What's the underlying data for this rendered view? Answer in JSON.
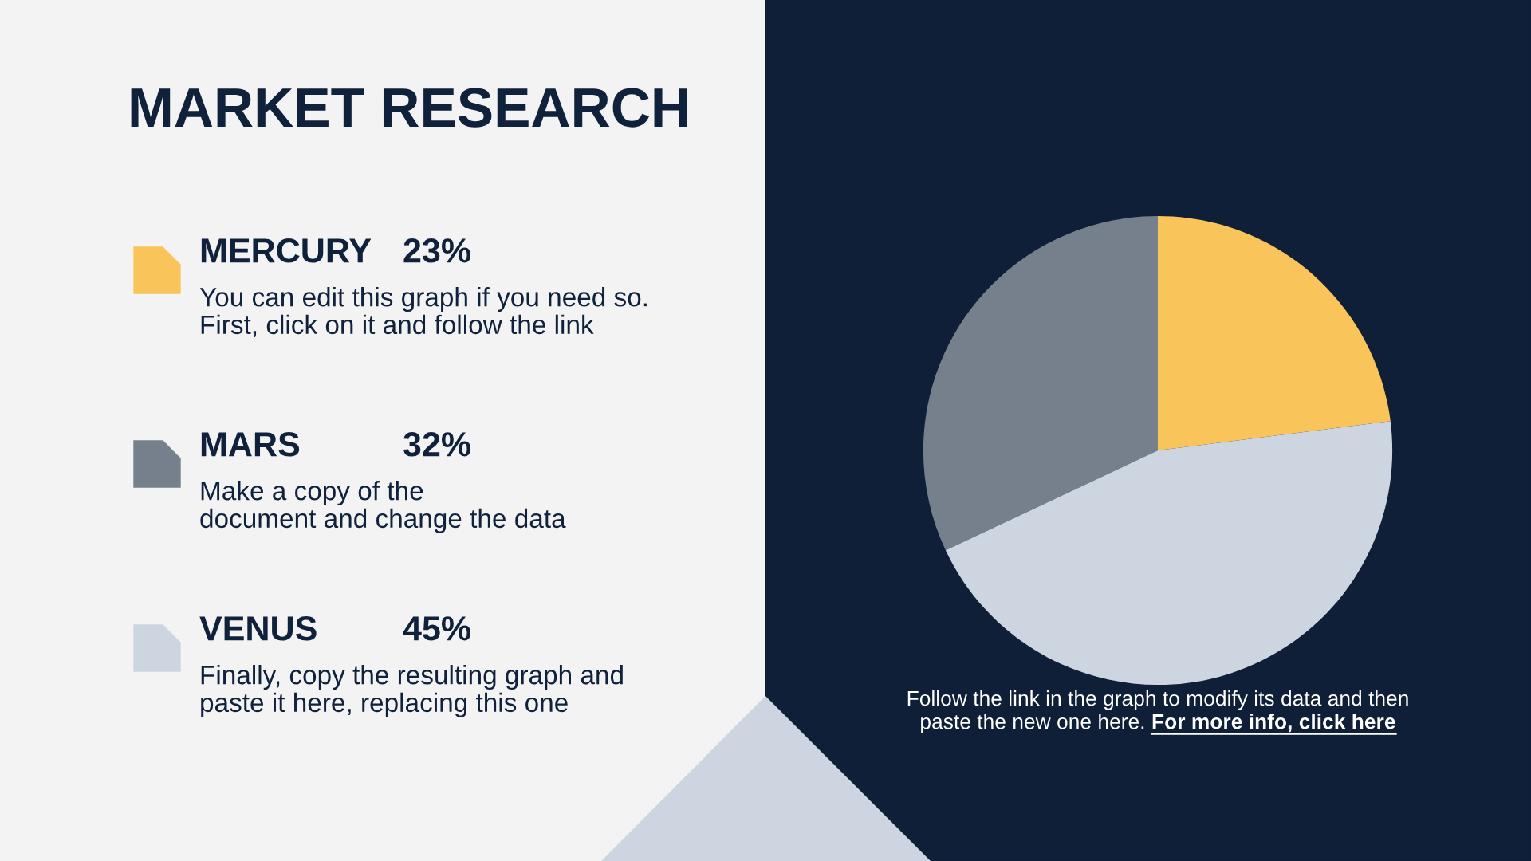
{
  "chart_data": {
    "type": "pie",
    "title": "MARKET RESEARCH",
    "categories": [
      "MERCURY",
      "MARS",
      "VENUS"
    ],
    "values": [
      23,
      32,
      45
    ],
    "colors": [
      "#f9c55a",
      "#76808c",
      "#cdd6e0"
    ],
    "value_labels": [
      "23%",
      "32%",
      "45%"
    ],
    "legend": "left",
    "annotations": [
      "You can edit this graph if you need so.\nFirst, click on it and follow the link",
      "Make a copy of the\ndocument and change the data",
      "Finally, copy the resulting graph and\npaste it here, replacing this one",
      "Follow the link in the graph to modify its data and then\npaste the new one here.",
      "For more info, click here"
    ]
  }
}
